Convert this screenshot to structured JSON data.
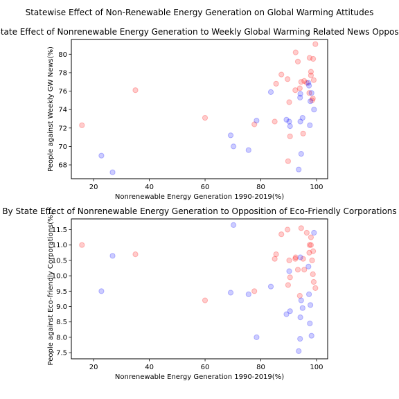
{
  "figure": {
    "suptitle": "Statewise Effect of Non-Renewable Energy Generation on Global Warming Attitudes"
  },
  "colors": {
    "red": "#ff0000",
    "blue": "#0000ff"
  },
  "chart_data": [
    {
      "type": "scatter",
      "title": "By State Effect of Nonrenewable Energy Generation to Weekly Global Warming Related News Opposition",
      "xlabel": "Nonrenewable Energy Generation 1990-2019(%)",
      "ylabel": "People against Weekly GW News(%)",
      "xlim": [
        12,
        104
      ],
      "ylim": [
        66.5,
        81.6
      ],
      "xticks": [
        20,
        40,
        60,
        80,
        100
      ],
      "yticks": [
        68,
        70,
        72,
        74,
        76,
        78,
        80
      ],
      "grid": false,
      "series": [
        {
          "color": "red",
          "points": [
            [
              15.8,
              72.3
            ],
            [
              35.0,
              76.1
            ],
            [
              60.0,
              73.1
            ],
            [
              77.7,
              72.4
            ],
            [
              85.0,
              72.7
            ],
            [
              85.5,
              76.8
            ],
            [
              87.4,
              77.8
            ],
            [
              89.6,
              77.3
            ],
            [
              89.8,
              68.4
            ],
            [
              90.2,
              74.8
            ],
            [
              90.5,
              71.1
            ],
            [
              92.4,
              76.1
            ],
            [
              92.5,
              80.2
            ],
            [
              93.3,
              79.2
            ],
            [
              94.0,
              76.3
            ],
            [
              94.5,
              77.0
            ],
            [
              95.2,
              71.4
            ],
            [
              95.6,
              77.1
            ],
            [
              96.5,
              76.9
            ],
            [
              97.4,
              75.8
            ],
            [
              97.5,
              79.6
            ],
            [
              98.0,
              78.1
            ],
            [
              98.0,
              77.7
            ],
            [
              98.4,
              75.0
            ],
            [
              98.7,
              75.2
            ],
            [
              98.8,
              79.5
            ],
            [
              99.0,
              77.2
            ],
            [
              99.6,
              81.1
            ]
          ]
        },
        {
          "color": "blue",
          "points": [
            [
              22.8,
              69.0
            ],
            [
              26.8,
              67.2
            ],
            [
              69.2,
              71.2
            ],
            [
              70.2,
              70.0
            ],
            [
              75.6,
              69.6
            ],
            [
              78.5,
              72.8
            ],
            [
              83.6,
              75.9
            ],
            [
              89.2,
              72.9
            ],
            [
              90.2,
              72.7
            ],
            [
              90.5,
              72.2
            ],
            [
              93.6,
              67.5
            ],
            [
              94.1,
              75.3
            ],
            [
              94.2,
              72.7
            ],
            [
              94.2,
              75.7
            ],
            [
              94.5,
              69.2
            ],
            [
              95.0,
              73.1
            ],
            [
              97.1,
              76.9
            ],
            [
              97.3,
              76.6
            ],
            [
              97.6,
              72.3
            ],
            [
              97.8,
              74.9
            ],
            [
              98.2,
              75.8
            ],
            [
              99.1,
              74.0
            ]
          ]
        }
      ]
    },
    {
      "type": "scatter",
      "title": "By State Effect of Nonrenewable Energy Generation to Opposition of Eco-Friendly Corporations",
      "xlabel": "Nonrenewable Energy Generation 1990-2019(%)",
      "ylabel": "People against Eco-friendly Corporations(%)",
      "xlim": [
        12,
        104
      ],
      "ylim": [
        7.3,
        11.85
      ],
      "xticks": [
        20,
        40,
        60,
        80,
        100
      ],
      "yticks": [
        7.5,
        8.0,
        8.5,
        9.0,
        9.5,
        10.0,
        10.5,
        11.0,
        11.5
      ],
      "grid": false,
      "series": [
        {
          "color": "red",
          "points": [
            [
              15.8,
              11.0
            ],
            [
              35.0,
              10.7
            ],
            [
              60.0,
              9.2
            ],
            [
              77.7,
              9.5
            ],
            [
              85.0,
              10.55
            ],
            [
              85.5,
              10.7
            ],
            [
              87.4,
              11.35
            ],
            [
              89.6,
              11.5
            ],
            [
              89.8,
              9.7
            ],
            [
              90.2,
              10.5
            ],
            [
              90.5,
              9.95
            ],
            [
              92.4,
              10.55
            ],
            [
              92.5,
              10.6
            ],
            [
              93.3,
              10.2
            ],
            [
              94.0,
              9.35
            ],
            [
              94.5,
              11.55
            ],
            [
              95.2,
              10.55
            ],
            [
              95.6,
              10.2
            ],
            [
              96.5,
              11.4
            ],
            [
              97.4,
              10.75
            ],
            [
              97.5,
              11.0
            ],
            [
              98.0,
              11.0
            ],
            [
              98.0,
              11.25
            ],
            [
              98.4,
              10.5
            ],
            [
              98.7,
              10.05
            ],
            [
              98.8,
              10.8
            ],
            [
              99.0,
              9.8
            ],
            [
              99.6,
              9.6
            ]
          ]
        },
        {
          "color": "blue",
          "points": [
            [
              22.8,
              9.5
            ],
            [
              26.8,
              10.65
            ],
            [
              69.2,
              9.45
            ],
            [
              70.2,
              11.65
            ],
            [
              75.6,
              9.4
            ],
            [
              78.5,
              8.0
            ],
            [
              83.6,
              9.65
            ],
            [
              89.2,
              8.75
            ],
            [
              90.2,
              10.15
            ],
            [
              90.5,
              8.85
            ],
            [
              93.6,
              7.55
            ],
            [
              94.1,
              7.95
            ],
            [
              94.2,
              10.6
            ],
            [
              94.2,
              8.65
            ],
            [
              94.5,
              9.2
            ],
            [
              95.0,
              8.95
            ],
            [
              97.1,
              10.3
            ],
            [
              97.3,
              9.4
            ],
            [
              97.6,
              8.45
            ],
            [
              97.8,
              9.05
            ],
            [
              98.2,
              8.05
            ],
            [
              99.1,
              11.4
            ]
          ]
        }
      ]
    }
  ]
}
